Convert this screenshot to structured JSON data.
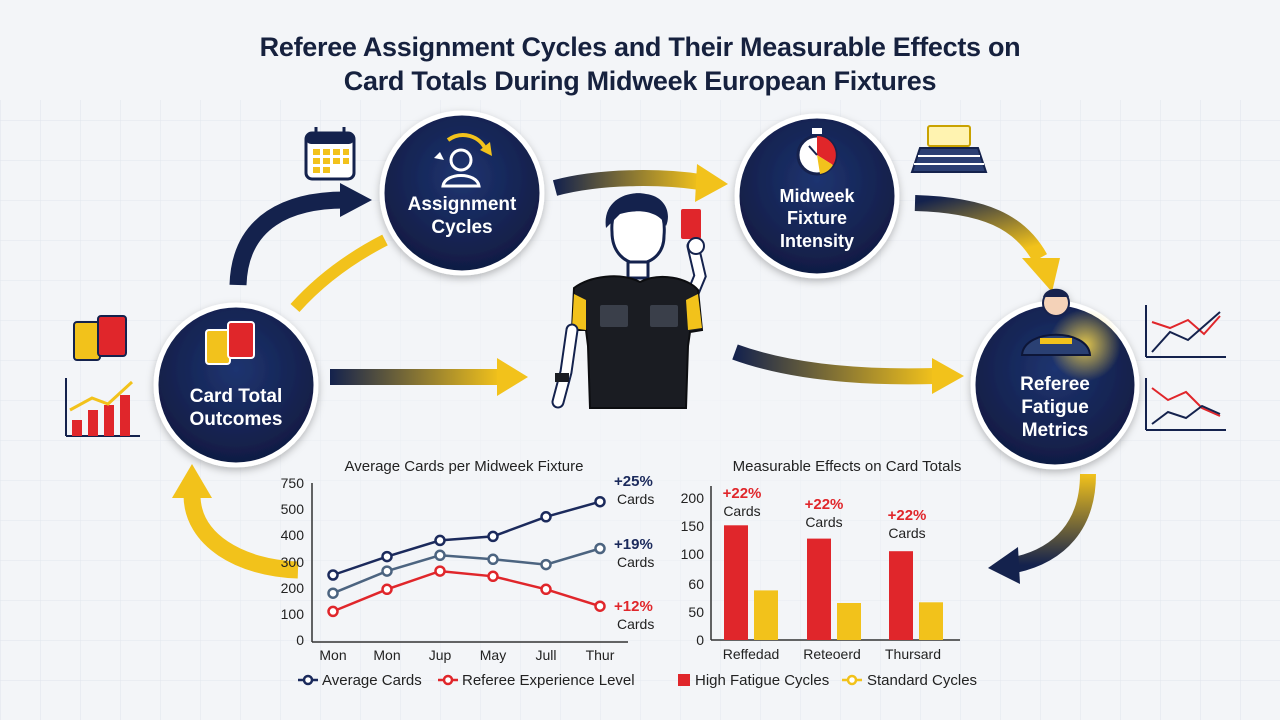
{
  "title": {
    "line1": "Referee Assignment Cycles and Their Measurable Effects on",
    "line2": "Card Totals During Midweek European Fixtures"
  },
  "nodes": {
    "assignment": {
      "line1": "Assignment",
      "line2": "Cycles"
    },
    "midweek": {
      "line1": "Midweek",
      "line2": "Fixture",
      "line3": "Intensity"
    },
    "fatigue": {
      "line1": "Referee",
      "line2": "Fatigue",
      "line3": "Metrics"
    },
    "card_total": {
      "line1": "Card Total",
      "line2": "Outcomes"
    }
  },
  "colors": {
    "navy": "#14224d",
    "yellow": "#f2c21b",
    "red": "#e0262b",
    "steel": "#4c6480"
  },
  "chart_data": [
    {
      "type": "line",
      "title": "Average Cards per Midweek Fixture",
      "categories": [
        "Mon",
        "Mon",
        "Jup",
        "May",
        "Jull",
        "Thur"
      ],
      "yticks": [
        "750",
        "500",
        "400",
        "300",
        "200",
        "100",
        "0"
      ],
      "series": [
        {
          "name": "Average Cards",
          "color": "#1b2a5c",
          "values": [
            250,
            320,
            380,
            395,
            470,
            570
          ]
        },
        {
          "name": "",
          "color": "#4c6480",
          "values": [
            180,
            265,
            325,
            310,
            290,
            350
          ]
        },
        {
          "name": "Referee Experience Level",
          "color": "#e0262b",
          "values": [
            110,
            195,
            265,
            245,
            195,
            130
          ]
        }
      ],
      "annotations": [
        {
          "pct": "+25%",
          "unit": "Cards",
          "color": "#1b2a5c"
        },
        {
          "pct": "+19%",
          "unit": "Cards",
          "color": "#1b2a5c"
        },
        {
          "pct": "+12%",
          "unit": "Cards",
          "color": "#e0262b"
        }
      ]
    },
    {
      "type": "bar",
      "title": "Measurable Effects on Card Totals",
      "categories": [
        "Reffedad",
        "Reteoerd",
        "Thursard"
      ],
      "yticks": [
        "200",
        "150",
        "100",
        "60",
        "50",
        "0"
      ],
      "series": [
        {
          "name": "High Fatigue Cycles",
          "color": "#e0262b",
          "values": [
            155,
            137,
            120
          ]
        },
        {
          "name": "Standard Cycles",
          "color": "#f2c21b",
          "values": [
            67,
            50,
            51
          ]
        }
      ],
      "annotations": [
        {
          "pct": "+22%",
          "unit": "Cards"
        },
        {
          "pct": "+22%",
          "unit": "Cards"
        },
        {
          "pct": "+22%",
          "unit": "Cards"
        }
      ]
    }
  ]
}
